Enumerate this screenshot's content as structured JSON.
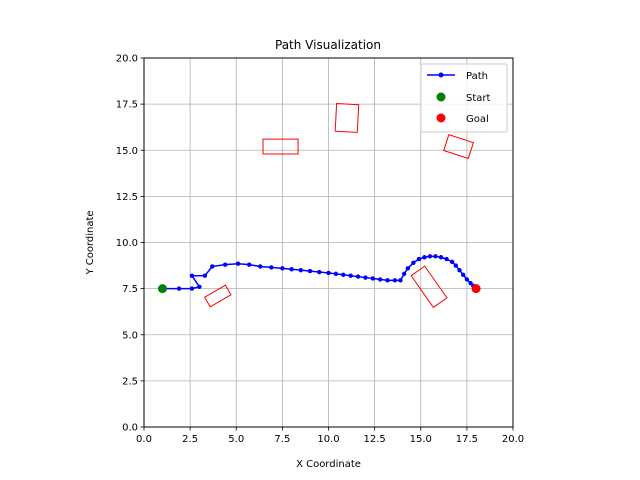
{
  "chart_data": {
    "type": "line",
    "title": "Path Visualization",
    "xlabel": "X Coordinate",
    "ylabel": "Y Coordinate",
    "xlim": [
      0,
      20
    ],
    "ylim": [
      0,
      20
    ],
    "x_ticks": [
      "0.0",
      "2.5",
      "5.0",
      "7.5",
      "10.0",
      "12.5",
      "15.0",
      "17.5",
      "20.0"
    ],
    "y_ticks": [
      "0.0",
      "2.5",
      "5.0",
      "7.5",
      "10.0",
      "12.5",
      "15.0",
      "17.5",
      "20.0"
    ],
    "grid": true,
    "legend_position": "top-right",
    "legend": [
      {
        "label": "Path",
        "marker": "line-dot",
        "color": "#0000ff"
      },
      {
        "label": "Start",
        "marker": "dot",
        "color": "#008000"
      },
      {
        "label": "Goal",
        "marker": "dot",
        "color": "#ff0000"
      }
    ],
    "path": {
      "name": "Path",
      "color": "#0000ff",
      "points": [
        [
          1.0,
          7.5
        ],
        [
          1.9,
          7.5
        ],
        [
          2.6,
          7.5
        ],
        [
          3.0,
          7.6
        ],
        [
          2.6,
          8.2
        ],
        [
          3.3,
          8.2
        ],
        [
          3.7,
          8.7
        ],
        [
          4.4,
          8.8
        ],
        [
          5.1,
          8.85
        ],
        [
          5.7,
          8.8
        ],
        [
          6.3,
          8.7
        ],
        [
          6.9,
          8.65
        ],
        [
          7.5,
          8.6
        ],
        [
          8.0,
          8.55
        ],
        [
          8.5,
          8.5
        ],
        [
          9.0,
          8.45
        ],
        [
          9.5,
          8.4
        ],
        [
          10.0,
          8.35
        ],
        [
          10.4,
          8.3
        ],
        [
          10.8,
          8.25
        ],
        [
          11.2,
          8.2
        ],
        [
          11.6,
          8.15
        ],
        [
          12.0,
          8.1
        ],
        [
          12.4,
          8.05
        ],
        [
          12.8,
          8.0
        ],
        [
          13.2,
          7.95
        ],
        [
          13.6,
          7.95
        ],
        [
          13.9,
          7.95
        ],
        [
          14.1,
          8.3
        ],
        [
          14.3,
          8.6
        ],
        [
          14.6,
          8.9
        ],
        [
          14.9,
          9.1
        ],
        [
          15.2,
          9.2
        ],
        [
          15.5,
          9.25
        ],
        [
          15.8,
          9.25
        ],
        [
          16.1,
          9.2
        ],
        [
          16.4,
          9.1
        ],
        [
          16.7,
          8.95
        ],
        [
          16.9,
          8.75
        ],
        [
          17.1,
          8.5
        ],
        [
          17.3,
          8.25
        ],
        [
          17.5,
          8.0
        ],
        [
          17.7,
          7.8
        ],
        [
          17.85,
          7.65
        ],
        [
          18.0,
          7.5
        ]
      ]
    },
    "start": {
      "name": "Start",
      "x": 1.0,
      "y": 7.5,
      "color": "#008000"
    },
    "goal": {
      "name": "Goal",
      "x": 18.0,
      "y": 7.5,
      "color": "#ff0000"
    },
    "obstacles": {
      "color": "#ff0000",
      "items": [
        {
          "cx": 4.0,
          "cy": 7.1,
          "w": 1.3,
          "h": 0.6,
          "angle": 30
        },
        {
          "cx": 7.4,
          "cy": 15.2,
          "w": 1.9,
          "h": 0.8,
          "angle": 0
        },
        {
          "cx": 11.0,
          "cy": 16.75,
          "w": 1.2,
          "h": 1.5,
          "angle": -3
        },
        {
          "cx": 17.05,
          "cy": 15.2,
          "w": 1.4,
          "h": 0.9,
          "angle": -18
        },
        {
          "cx": 15.45,
          "cy": 7.6,
          "w": 0.9,
          "h": 2.1,
          "angle": 35
        }
      ]
    }
  }
}
